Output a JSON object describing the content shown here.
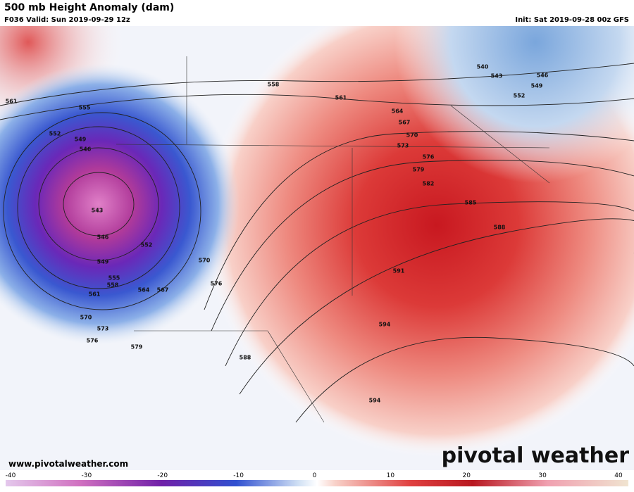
{
  "header": {
    "title": "500 mb Height Anomaly (dam)",
    "valid": "F036 Valid: Sun 2019-09-29 12z",
    "init": "Init: Sat 2019-09-28 00z GFS"
  },
  "map": {
    "contour_labels": [
      540,
      543,
      546,
      549,
      552,
      558,
      561,
      561,
      555,
      564,
      567,
      570,
      573,
      576,
      579,
      582,
      585,
      588,
      552,
      549,
      546,
      543,
      546,
      552,
      549,
      555,
      558,
      561,
      564,
      567,
      570,
      576,
      570,
      573,
      576,
      579,
      588,
      591,
      594,
      594
    ]
  },
  "footer": {
    "url": "www.pivotalweather.com",
    "watermark": "pivotal weather"
  },
  "colorbar": {
    "ticks": [
      -40,
      -30,
      -20,
      -10,
      0,
      10,
      20,
      30,
      40
    ]
  }
}
